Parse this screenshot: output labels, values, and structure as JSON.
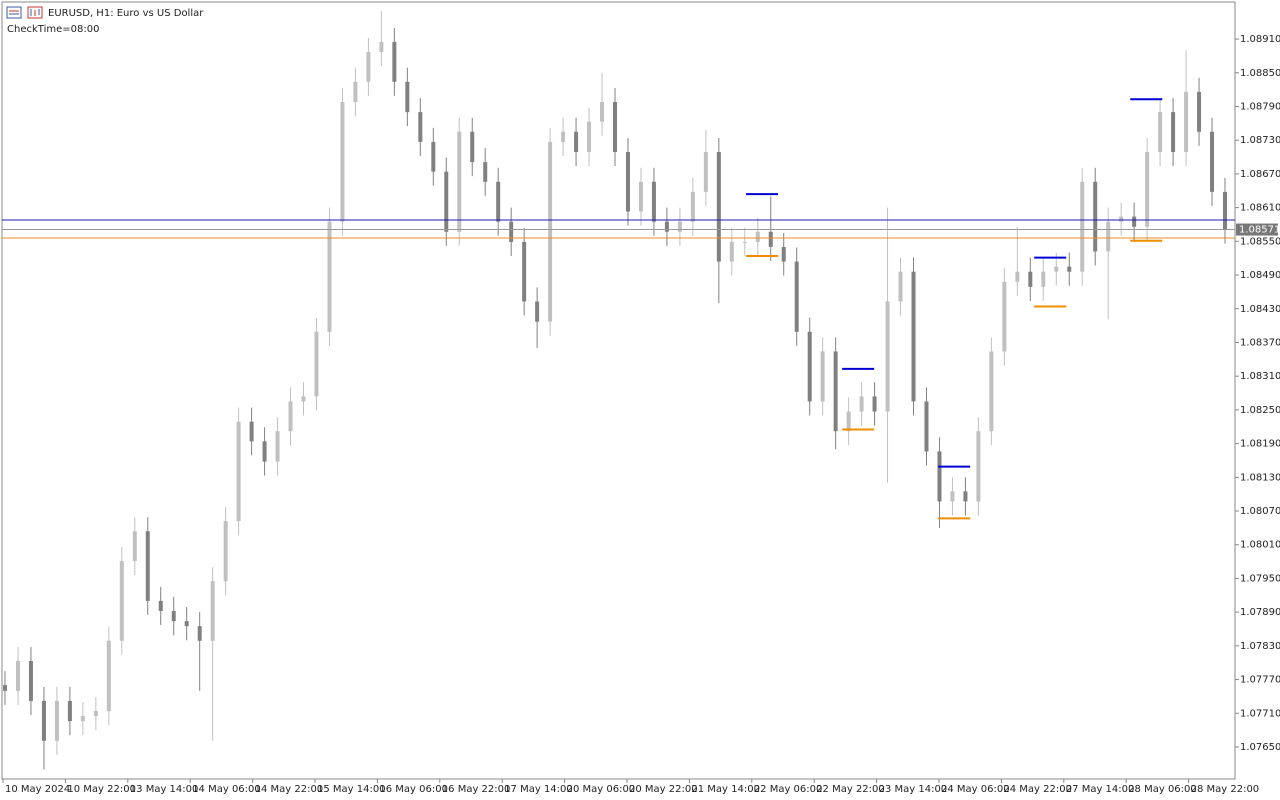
{
  "chart_data": {
    "type": "candlestick",
    "title": "EURUSD, H1:  Euro vs US Dollar",
    "subtitle": "CheckTime=08:00",
    "up_color": "#c0c0c0",
    "down_color": "#808080",
    "ylim": [
      1.07593,
      1.08976
    ],
    "yticks": [
      {
        "value": 1.0891,
        "label": "1.08910"
      },
      {
        "value": 1.0885,
        "label": "1.08850"
      },
      {
        "value": 1.0879,
        "label": "1.08790"
      },
      {
        "value": 1.0873,
        "label": "1.08730"
      },
      {
        "value": 1.0867,
        "label": "1.08670"
      },
      {
        "value": 1.0861,
        "label": "1.08610"
      },
      {
        "value": 1.0855,
        "label": "1.08550"
      },
      {
        "value": 1.0849,
        "label": "1.08490"
      },
      {
        "value": 1.0843,
        "label": "1.08430"
      },
      {
        "value": 1.0837,
        "label": "1.08370"
      },
      {
        "value": 1.0831,
        "label": "1.08310"
      },
      {
        "value": 1.0825,
        "label": "1.08250"
      },
      {
        "value": 1.0819,
        "label": "1.08190"
      },
      {
        "value": 1.0813,
        "label": "1.08130"
      },
      {
        "value": 1.0807,
        "label": "1.08070"
      },
      {
        "value": 1.0801,
        "label": "1.08010"
      },
      {
        "value": 1.0795,
        "label": "1.07950"
      },
      {
        "value": 1.0789,
        "label": "1.07890"
      },
      {
        "value": 1.0783,
        "label": "1.07830"
      },
      {
        "value": 1.0777,
        "label": "1.07770"
      },
      {
        "value": 1.0771,
        "label": "1.07710"
      },
      {
        "value": 1.0765,
        "label": "1.07650"
      }
    ],
    "x_labels": [
      "10 May 2024",
      "10 May 22:00",
      "13 May 14:00",
      "14 May 06:00",
      "14 May 22:00",
      "15 May 14:00",
      "16 May 06:00",
      "16 May 22:00",
      "17 May 14:00",
      "20 May 06:00",
      "20 May 22:00",
      "21 May 14:00",
      "22 May 06:00",
      "22 May 22:00",
      "23 May 14:00",
      "24 May 06:00",
      "24 May 22:00",
      "27 May 14:00",
      "28 May 06:00",
      "28 May 22:00"
    ],
    "open": [
      1.0776,
      1.0775,
      1.07803,
      1.07732,
      1.07661,
      1.07732,
      1.07696,
      1.07705,
      1.07714,
      1.07839,
      1.07981,
      1.08034,
      1.0791,
      1.07892,
      1.07874,
      1.07865,
      1.07839,
      1.07945,
      1.08052,
      1.08229,
      1.08194,
      1.08158,
      1.08212,
      1.08265,
      1.08274,
      1.08389,
      1.08585,
      1.08798,
      1.08834,
      1.08887,
      1.08905,
      1.08834,
      1.0878,
      1.08727,
      1.08674,
      1.08567,
      1.08745,
      1.08691,
      1.08656,
      1.08585,
      1.08549,
      1.08443,
      1.08407,
      1.08727,
      1.08745,
      1.08709,
      1.08763,
      1.08798,
      1.08709,
      1.08603,
      1.08656,
      1.08585,
      1.08567,
      1.08585,
      1.08638,
      1.08709,
      1.08514,
      1.08549,
      1.08549,
      1.08567,
      1.0854,
      1.08514,
      1.08389,
      1.08265,
      1.08354,
      1.08212,
      1.08247,
      1.08274,
      1.08247,
      1.08443,
      1.08496,
      1.08265,
      1.08176,
      1.08087,
      1.08105,
      1.08087,
      1.08212,
      1.08354,
      1.08478,
      1.08496,
      1.08469,
      1.08496,
      1.08505,
      1.08496,
      1.08656,
      1.08532,
      1.08585,
      1.08594,
      1.08576,
      1.08709,
      1.0878,
      1.08709,
      1.08816,
      1.08745,
      1.08638
    ],
    "high": [
      1.07785,
      1.07828,
      1.07828,
      1.07757,
      1.07757,
      1.07757,
      1.0773,
      1.07739,
      1.07864,
      1.08006,
      1.08059,
      1.08059,
      1.07935,
      1.07917,
      1.07899,
      1.0789,
      1.0797,
      1.08077,
      1.08254,
      1.08254,
      1.08219,
      1.08237,
      1.0829,
      1.08299,
      1.08414,
      1.0861,
      1.08823,
      1.08859,
      1.08912,
      1.0896,
      1.0893,
      1.08859,
      1.08805,
      1.08752,
      1.08699,
      1.0877,
      1.0877,
      1.08716,
      1.08681,
      1.0861,
      1.08574,
      1.08468,
      1.08752,
      1.0877,
      1.0877,
      1.08788,
      1.0885,
      1.08823,
      1.08734,
      1.08681,
      1.08681,
      1.0861,
      1.0861,
      1.08663,
      1.08748,
      1.08734,
      1.08574,
      1.08574,
      1.08592,
      1.0863,
      1.08565,
      1.08539,
      1.08414,
      1.08379,
      1.08379,
      1.08272,
      1.08299,
      1.08299,
      1.0861,
      1.08521,
      1.08521,
      1.0829,
      1.08201,
      1.0813,
      1.0813,
      1.08237,
      1.08379,
      1.08503,
      1.08576,
      1.08521,
      1.08521,
      1.0853,
      1.0853,
      1.08681,
      1.08681,
      1.0861,
      1.08619,
      1.08619,
      1.08734,
      1.08805,
      1.08805,
      1.0889,
      1.08841,
      1.0877,
      1.08663
    ],
    "low": [
      1.07725,
      1.07725,
      1.07707,
      1.0761,
      1.07636,
      1.07671,
      1.07671,
      1.0768,
      1.07689,
      1.07814,
      1.07956,
      1.07885,
      1.07867,
      1.07849,
      1.0784,
      1.0775,
      1.07661,
      1.0792,
      1.08027,
      1.08169,
      1.08133,
      1.08133,
      1.08187,
      1.0824,
      1.08249,
      1.08364,
      1.0856,
      1.08773,
      1.08809,
      1.08862,
      1.08809,
      1.08755,
      1.08702,
      1.08649,
      1.08542,
      1.08542,
      1.08666,
      1.08631,
      1.0856,
      1.08524,
      1.08418,
      1.0836,
      1.08382,
      1.08702,
      1.08684,
      1.08684,
      1.08738,
      1.08684,
      1.08578,
      1.08578,
      1.0856,
      1.08542,
      1.08542,
      1.0856,
      1.08613,
      1.0844,
      1.08489,
      1.08524,
      1.08524,
      1.08515,
      1.08489,
      1.08364,
      1.0824,
      1.0824,
      1.0818,
      1.08187,
      1.08222,
      1.08222,
      1.0812,
      1.08418,
      1.0824,
      1.08151,
      1.0804,
      1.08062,
      1.08062,
      1.08062,
      1.08187,
      1.08329,
      1.08453,
      1.08444,
      1.08444,
      1.08471,
      1.08471,
      1.08471,
      1.08507,
      1.08411,
      1.0856,
      1.08551,
      1.08551,
      1.08684,
      1.08684,
      1.08684,
      1.0872,
      1.08613,
      1.08546
    ],
    "close": [
      1.0775,
      1.07803,
      1.07732,
      1.07661,
      1.07732,
      1.07696,
      1.07705,
      1.07714,
      1.07839,
      1.07981,
      1.08034,
      1.0791,
      1.07892,
      1.07874,
      1.07865,
      1.07839,
      1.07945,
      1.08052,
      1.08229,
      1.08194,
      1.08158,
      1.08212,
      1.08265,
      1.08274,
      1.08389,
      1.08585,
      1.08798,
      1.08834,
      1.08887,
      1.08905,
      1.08834,
      1.0878,
      1.08727,
      1.08674,
      1.08567,
      1.08745,
      1.08691,
      1.08656,
      1.08585,
      1.08549,
      1.08443,
      1.08407,
      1.08727,
      1.08745,
      1.08709,
      1.08763,
      1.08798,
      1.08709,
      1.08603,
      1.08656,
      1.08585,
      1.08567,
      1.08585,
      1.08638,
      1.08709,
      1.08514,
      1.08549,
      1.08549,
      1.08567,
      1.0854,
      1.08514,
      1.08389,
      1.08265,
      1.08354,
      1.08212,
      1.08247,
      1.08274,
      1.08247,
      1.08443,
      1.08496,
      1.08265,
      1.08176,
      1.08087,
      1.08105,
      1.08087,
      1.08212,
      1.08354,
      1.08478,
      1.08496,
      1.08469,
      1.08496,
      1.08505,
      1.08496,
      1.08656,
      1.08532,
      1.08585,
      1.08594,
      1.08576,
      1.08709,
      1.0878,
      1.08709,
      1.08816,
      1.08745,
      1.08638,
      1.08571
    ],
    "hlines": [
      {
        "value": 1.08588,
        "color": "#1c1cb0"
      },
      {
        "value": 1.08556,
        "color": "#f08c1e"
      }
    ],
    "current_price": {
      "value": 1.08571,
      "label": "1.08571"
    },
    "range_markers": {
      "high_color": "#0000d0",
      "low_color": "#f08c00",
      "items": [
        {
          "bar": 57.1,
          "high": 1.08634,
          "low": 1.08524
        },
        {
          "bar": 64.5,
          "high": 1.08323,
          "low": 1.08215
        },
        {
          "bar": 71.9,
          "high": 1.08149,
          "low": 1.08057
        },
        {
          "bar": 79.3,
          "high": 1.08521,
          "low": 1.08434
        },
        {
          "bar": 86.7,
          "high": 1.08803,
          "low": 1.08551
        }
      ]
    }
  }
}
